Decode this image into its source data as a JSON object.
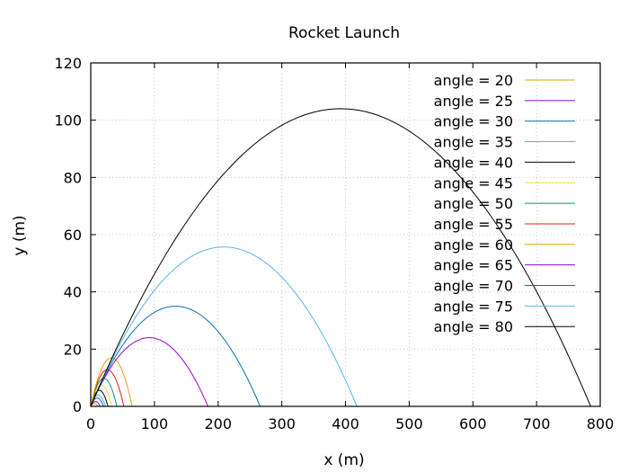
{
  "chart_data": {
    "type": "line",
    "title": "Rocket Launch",
    "xlabel": "x (m)",
    "ylabel": "y (m)",
    "xlim": [
      0,
      800
    ],
    "ylim": [
      0,
      120
    ],
    "xticks": [
      0,
      100,
      200,
      300,
      400,
      500,
      600,
      700,
      800
    ],
    "yticks": [
      0,
      20,
      40,
      60,
      80,
      100,
      120
    ],
    "grid": true,
    "legend_position": "top-right",
    "series": [
      {
        "name": "angle = 20",
        "color": "#e69f00",
        "range_x": 11,
        "peak_y": 1
      },
      {
        "name": "angle = 25",
        "color": "#9400d3",
        "range_x": 15,
        "peak_y": 1.7
      },
      {
        "name": "angle = 30",
        "color": "#0072b2",
        "range_x": 20,
        "peak_y": 2.9
      },
      {
        "name": "angle = 35",
        "color": "#56b4e9",
        "range_x": 23,
        "peak_y": 4
      },
      {
        "name": "angle = 40",
        "color": "#000000",
        "range_x": 27,
        "peak_y": 5.6
      },
      {
        "name": "angle = 45",
        "color": "#f0e442",
        "range_x": 33,
        "peak_y": 7.5
      },
      {
        "name": "angle = 50",
        "color": "#009e73",
        "range_x": 41,
        "peak_y": 9.8
      },
      {
        "name": "angle = 55",
        "color": "#e51e10",
        "range_x": 52,
        "peak_y": 12.8
      },
      {
        "name": "angle = 60",
        "color": "#e69f00",
        "range_x": 65,
        "peak_y": 17
      },
      {
        "name": "angle = 65",
        "color": "#9400d3",
        "range_x": 184,
        "peak_y": 24
      },
      {
        "name": "angle = 70",
        "color": "#0072b2",
        "range_x": 266,
        "peak_y": 35
      },
      {
        "name": "angle = 75",
        "color": "#56b4e9",
        "range_x": 418,
        "peak_y": 55.7
      },
      {
        "name": "angle = 80",
        "color": "#000000",
        "range_x": 785,
        "peak_y": 104
      }
    ]
  }
}
